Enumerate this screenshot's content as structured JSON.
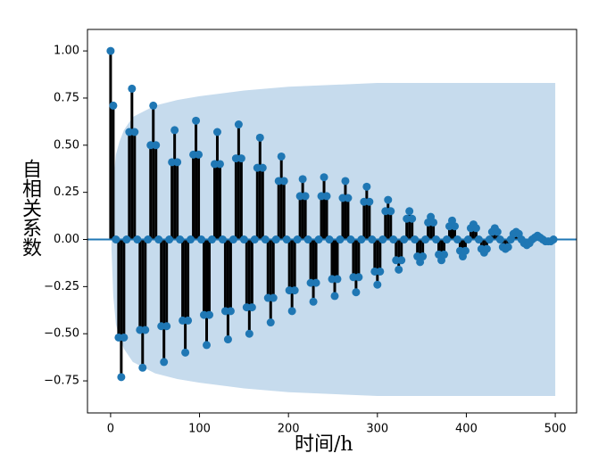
{
  "chart_data": {
    "type": "stem",
    "xlabel": "时间/h",
    "ylabel": "自相关系数",
    "xlim": [
      -26,
      524
    ],
    "ylim": [
      -0.92,
      1.114
    ],
    "xticks": [
      0,
      100,
      200,
      300,
      400,
      500
    ],
    "yticks": [
      {
        "value": -0.75,
        "label": "−0.75"
      },
      {
        "value": -0.5,
        "label": "−0.50"
      },
      {
        "value": -0.25,
        "label": "−0.25"
      },
      {
        "value": 0,
        "label": "0.00"
      },
      {
        "value": 0.25,
        "label": "0.25"
      },
      {
        "value": 0.5,
        "label": "0.50"
      },
      {
        "value": 0.75,
        "label": "0.75"
      },
      {
        "value": 1,
        "label": "1.00"
      }
    ],
    "color": "#1f77b4",
    "stem_color": "#000000",
    "band_color": "#c6dbed",
    "x": [
      0,
      3,
      6,
      9,
      12,
      15,
      18,
      21,
      24,
      27,
      30,
      33,
      36,
      39,
      42,
      45,
      48,
      51,
      54,
      57,
      60,
      63,
      66,
      69,
      72,
      75,
      78,
      81,
      84,
      87,
      90,
      93,
      96,
      99,
      102,
      105,
      108,
      111,
      114,
      117,
      120,
      123,
      126,
      129,
      132,
      135,
      138,
      141,
      144,
      147,
      150,
      153,
      156,
      159,
      162,
      165,
      168,
      171,
      174,
      177,
      180,
      183,
      186,
      189,
      192,
      195,
      198,
      201,
      204,
      207,
      210,
      213,
      216,
      219,
      222,
      225,
      228,
      231,
      234,
      237,
      240,
      243,
      246,
      249,
      252,
      255,
      258,
      261,
      264,
      267,
      270,
      273,
      276,
      279,
      282,
      285,
      288,
      291,
      294,
      297,
      300,
      303,
      306,
      309,
      312,
      315,
      318,
      321,
      324,
      327,
      330,
      333,
      336,
      339,
      342,
      345,
      348,
      351,
      354,
      357,
      360,
      363,
      366,
      369,
      372,
      375,
      378,
      381,
      384,
      387,
      390,
      393,
      396,
      399,
      402,
      405,
      408,
      411,
      414,
      417,
      420,
      423,
      426,
      429,
      432,
      435,
      438,
      441,
      444,
      447,
      450,
      453,
      456,
      459,
      462,
      465,
      468,
      471,
      474,
      477,
      480,
      483,
      486,
      489,
      492,
      495,
      498
    ],
    "values": [
      1,
      0.71,
      0,
      -0.52,
      -0.73,
      -0.52,
      0,
      0.57,
      0.8,
      0.57,
      0,
      -0.48,
      -0.68,
      -0.48,
      0,
      0.5,
      0.71,
      0.5,
      0,
      -0.46,
      -0.65,
      -0.46,
      0,
      0.41,
      0.58,
      0.41,
      0,
      -0.43,
      -0.6,
      -0.43,
      0,
      0.45,
      0.63,
      0.45,
      0,
      -0.4,
      -0.56,
      -0.4,
      0,
      0.4,
      0.57,
      0.4,
      0,
      -0.38,
      -0.53,
      -0.38,
      0,
      0.43,
      0.61,
      0.43,
      0,
      -0.36,
      -0.5,
      -0.36,
      0,
      0.38,
      0.54,
      0.38,
      0,
      -0.31,
      -0.44,
      -0.31,
      0,
      0.31,
      0.44,
      0.31,
      0,
      -0.27,
      -0.38,
      -0.27,
      0,
      0.23,
      0.32,
      0.23,
      0,
      -0.23,
      -0.33,
      -0.23,
      0,
      0.23,
      0.33,
      0.23,
      0,
      -0.21,
      -0.3,
      -0.21,
      0,
      0.22,
      0.31,
      0.22,
      0,
      -0.2,
      -0.28,
      -0.2,
      0,
      0.2,
      0.28,
      0.2,
      0,
      -0.17,
      -0.24,
      -0.17,
      0,
      0.15,
      0.21,
      0.15,
      0,
      -0.11,
      -0.16,
      -0.11,
      0,
      0.11,
      0.15,
      0.11,
      0,
      -0.09,
      -0.12,
      -0.09,
      0,
      0.09,
      0.12,
      0.09,
      0,
      -0.08,
      -0.11,
      -0.08,
      0,
      0.07,
      0.1,
      0.07,
      0,
      -0.06,
      -0.09,
      -0.06,
      0,
      0.06,
      0.08,
      0.06,
      0,
      -0.05,
      -0.07,
      -0.05,
      0,
      0.04,
      0.06,
      0.04,
      0,
      -0.04,
      -0.05,
      -0.04,
      0,
      0.03,
      0.04,
      0.03,
      0,
      -0.02,
      -0.03,
      -0.02,
      0,
      0.01,
      0.02,
      0.01,
      0,
      -0.01,
      -0.01,
      -0.01,
      0
    ],
    "band": {
      "x": [
        1,
        3,
        6,
        10,
        15,
        25,
        50,
        75,
        100,
        150,
        200,
        250,
        300,
        400,
        500
      ],
      "upper": [
        0.05,
        0.3,
        0.45,
        0.52,
        0.58,
        0.65,
        0.71,
        0.74,
        0.76,
        0.79,
        0.81,
        0.82,
        0.83,
        0.83,
        0.83
      ],
      "lower": [
        -0.05,
        -0.3,
        -0.45,
        -0.52,
        -0.58,
        -0.65,
        -0.71,
        -0.74,
        -0.76,
        -0.79,
        -0.81,
        -0.82,
        -0.83,
        -0.83,
        -0.83
      ]
    }
  }
}
